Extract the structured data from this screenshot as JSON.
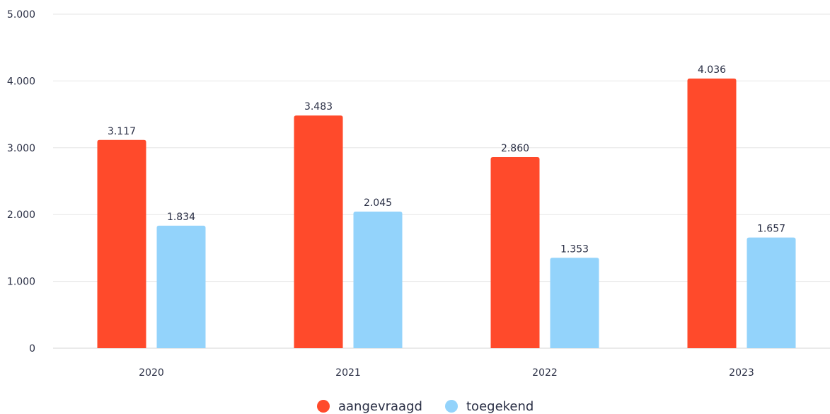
{
  "chart_data": {
    "type": "bar",
    "categories": [
      "2020",
      "2021",
      "2022",
      "2023"
    ],
    "series": [
      {
        "name": "aangevraagd",
        "values": [
          3117,
          3483,
          2860,
          4036
        ],
        "labels": [
          "3.117",
          "3.483",
          "2.860",
          "4.036"
        ],
        "color": "#ff4a2b"
      },
      {
        "name": "toegekend",
        "values": [
          1834,
          2045,
          1353,
          1657
        ],
        "labels": [
          "1.834",
          "2.045",
          "1.353",
          "1.657"
        ],
        "color": "#93d3fb"
      }
    ],
    "yticks": [
      {
        "value": 0,
        "label": "0"
      },
      {
        "value": 1000,
        "label": "1.000"
      },
      {
        "value": 2000,
        "label": "2.000"
      },
      {
        "value": 3000,
        "label": "3.000"
      },
      {
        "value": 4000,
        "label": "4.000"
      },
      {
        "value": 5000,
        "label": "5.000"
      }
    ],
    "ylim": [
      0,
      5000
    ],
    "grid": true,
    "legend_position": "bottom-center"
  }
}
